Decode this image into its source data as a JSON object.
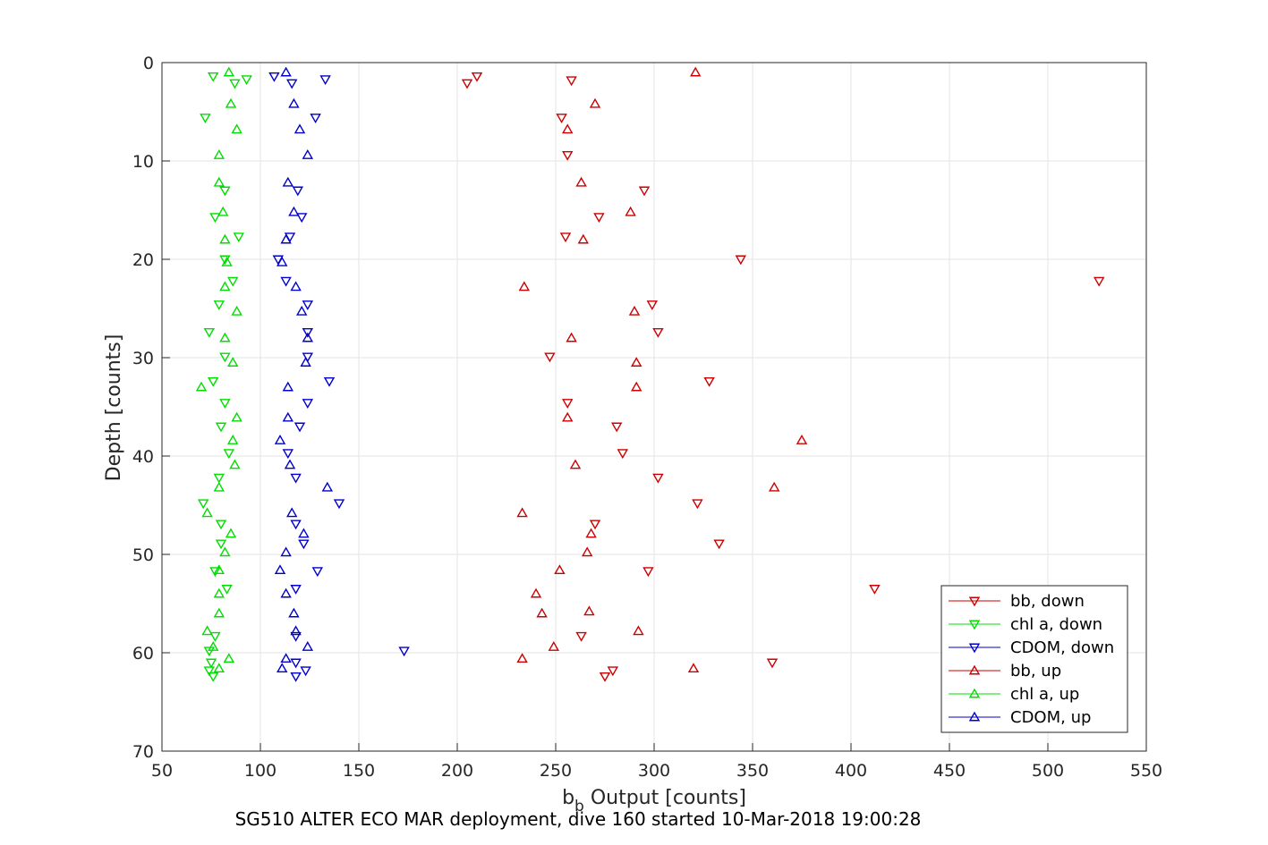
{
  "chart_data": {
    "type": "scatter",
    "xlabel_main": "b",
    "xlabel_sub": "b",
    "xlabel_rest": " Output [counts]",
    "ylabel": "Depth [counts]",
    "caption": "SG510 ALTER ECO MAR deployment, dive 160 started 10-Mar-2018 19:00:28",
    "xlim": [
      50,
      550
    ],
    "ylim": [
      0,
      70
    ],
    "y_reversed": true,
    "grid": true,
    "legend_position": "bottom-right",
    "xticks": [
      50,
      100,
      150,
      200,
      250,
      300,
      350,
      400,
      450,
      500,
      550
    ],
    "yticks": [
      0,
      10,
      20,
      30,
      40,
      50,
      60,
      70
    ],
    "series": [
      {
        "name": "bb, down",
        "color": "#cc0000",
        "marker": "down",
        "points": [
          [
            210,
            1.4
          ],
          [
            205,
            2.1
          ],
          [
            258,
            1.8
          ],
          [
            253,
            5.6
          ],
          [
            256,
            9.4
          ],
          [
            295,
            13.0
          ],
          [
            272,
            15.7
          ],
          [
            255,
            17.7
          ],
          [
            344,
            20.0
          ],
          [
            526,
            22.2
          ],
          [
            299,
            24.6
          ],
          [
            302,
            27.4
          ],
          [
            247,
            29.9
          ],
          [
            328,
            32.4
          ],
          [
            256,
            34.6
          ],
          [
            281,
            37.0
          ],
          [
            284,
            39.7
          ],
          [
            302,
            42.2
          ],
          [
            322,
            44.8
          ],
          [
            270,
            46.9
          ],
          [
            333,
            48.9
          ],
          [
            297,
            51.7
          ],
          [
            412,
            53.5
          ],
          [
            263,
            58.3
          ],
          [
            360,
            61.0
          ],
          [
            279,
            61.8
          ],
          [
            275,
            62.4
          ]
        ]
      },
      {
        "name": "chl a, down",
        "color": "#00dd00",
        "marker": "down",
        "points": [
          [
            76,
            1.4
          ],
          [
            93,
            1.7
          ],
          [
            87,
            2.1
          ],
          [
            72,
            5.6
          ],
          [
            82,
            13.0
          ],
          [
            77,
            15.7
          ],
          [
            89,
            17.7
          ],
          [
            82,
            20.0
          ],
          [
            86,
            22.2
          ],
          [
            79,
            24.6
          ],
          [
            74,
            27.4
          ],
          [
            82,
            29.9
          ],
          [
            76,
            32.4
          ],
          [
            82,
            34.6
          ],
          [
            80,
            37.0
          ],
          [
            84,
            39.7
          ],
          [
            79,
            42.2
          ],
          [
            71,
            44.8
          ],
          [
            80,
            46.9
          ],
          [
            80,
            48.9
          ],
          [
            77,
            51.7
          ],
          [
            83,
            53.5
          ],
          [
            77,
            58.3
          ],
          [
            74,
            59.8
          ],
          [
            75,
            61.0
          ],
          [
            74,
            61.8
          ],
          [
            76,
            62.4
          ]
        ]
      },
      {
        "name": "CDOM, down",
        "color": "#0000cc",
        "marker": "down",
        "points": [
          [
            107,
            1.4
          ],
          [
            133,
            1.7
          ],
          [
            116,
            2.1
          ],
          [
            128,
            5.6
          ],
          [
            119,
            13.0
          ],
          [
            121,
            15.7
          ],
          [
            115,
            17.7
          ],
          [
            109,
            20.0
          ],
          [
            113,
            22.2
          ],
          [
            124,
            24.6
          ],
          [
            124,
            27.4
          ],
          [
            124,
            29.9
          ],
          [
            135,
            32.4
          ],
          [
            124,
            34.6
          ],
          [
            120,
            37.0
          ],
          [
            114,
            39.7
          ],
          [
            118,
            42.2
          ],
          [
            140,
            44.8
          ],
          [
            118,
            46.9
          ],
          [
            122,
            48.9
          ],
          [
            129,
            51.7
          ],
          [
            118,
            53.5
          ],
          [
            118,
            58.3
          ],
          [
            173,
            59.8
          ],
          [
            118,
            61.0
          ],
          [
            123,
            61.8
          ],
          [
            118,
            62.4
          ]
        ]
      },
      {
        "name": "bb, up",
        "color": "#cc0000",
        "marker": "up",
        "points": [
          [
            321,
            1.0
          ],
          [
            270,
            4.2
          ],
          [
            256,
            6.8
          ],
          [
            263,
            12.2
          ],
          [
            288,
            15.2
          ],
          [
            264,
            18.0
          ],
          [
            234,
            22.8
          ],
          [
            290,
            25.3
          ],
          [
            258,
            28.0
          ],
          [
            291,
            30.5
          ],
          [
            291,
            33.0
          ],
          [
            256,
            36.1
          ],
          [
            375,
            38.4
          ],
          [
            260,
            40.9
          ],
          [
            361,
            43.2
          ],
          [
            233,
            45.8
          ],
          [
            268,
            47.9
          ],
          [
            266,
            49.8
          ],
          [
            252,
            51.6
          ],
          [
            240,
            54.0
          ],
          [
            243,
            56.0
          ],
          [
            267,
            55.8
          ],
          [
            292,
            57.8
          ],
          [
            249,
            59.4
          ],
          [
            233,
            60.6
          ],
          [
            320,
            61.6
          ]
        ]
      },
      {
        "name": "chl a, up",
        "color": "#00dd00",
        "marker": "up",
        "points": [
          [
            84,
            1.0
          ],
          [
            85,
            4.2
          ],
          [
            88,
            6.8
          ],
          [
            79,
            9.4
          ],
          [
            79,
            12.2
          ],
          [
            81,
            15.2
          ],
          [
            82,
            18.0
          ],
          [
            83,
            20.3
          ],
          [
            82,
            22.8
          ],
          [
            88,
            25.3
          ],
          [
            82,
            28.0
          ],
          [
            86,
            30.5
          ],
          [
            70,
            33.0
          ],
          [
            88,
            36.1
          ],
          [
            86,
            38.4
          ],
          [
            87,
            40.9
          ],
          [
            79,
            43.2
          ],
          [
            73,
            45.8
          ],
          [
            85,
            47.9
          ],
          [
            82,
            49.8
          ],
          [
            79,
            51.6
          ],
          [
            79,
            54.0
          ],
          [
            79,
            56.0
          ],
          [
            73,
            57.8
          ],
          [
            76,
            59.4
          ],
          [
            84,
            60.6
          ],
          [
            79,
            61.6
          ]
        ]
      },
      {
        "name": "CDOM, up",
        "color": "#0000cc",
        "marker": "up",
        "points": [
          [
            113,
            1.0
          ],
          [
            117,
            4.2
          ],
          [
            120,
            6.8
          ],
          [
            124,
            9.4
          ],
          [
            114,
            12.2
          ],
          [
            117,
            15.2
          ],
          [
            113,
            18.0
          ],
          [
            111,
            20.3
          ],
          [
            118,
            22.8
          ],
          [
            121,
            25.3
          ],
          [
            124,
            28.0
          ],
          [
            123,
            30.5
          ],
          [
            114,
            33.0
          ],
          [
            114,
            36.1
          ],
          [
            110,
            38.4
          ],
          [
            115,
            40.9
          ],
          [
            134,
            43.2
          ],
          [
            116,
            45.8
          ],
          [
            122,
            47.9
          ],
          [
            113,
            49.8
          ],
          [
            110,
            51.6
          ],
          [
            113,
            54.0
          ],
          [
            117,
            56.0
          ],
          [
            118,
            57.8
          ],
          [
            124,
            59.4
          ],
          [
            113,
            60.6
          ],
          [
            111,
            61.6
          ]
        ]
      }
    ]
  }
}
